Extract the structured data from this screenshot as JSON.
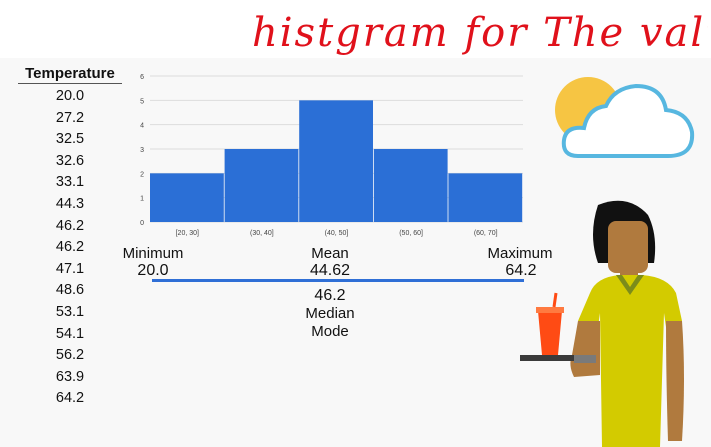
{
  "title_ink": "histgram for The values",
  "table": {
    "header": "Temperature",
    "values": [
      "20.0",
      "27.2",
      "32.5",
      "32.6",
      "33.1",
      "44.3",
      "46.2",
      "46.2",
      "47.1",
      "48.6",
      "53.1",
      "54.1",
      "56.2",
      "63.9",
      "64.2"
    ]
  },
  "chart_data": {
    "type": "bar",
    "categories": [
      "[20, 30]",
      "(30, 40]",
      "(40, 50]",
      "(50, 60]",
      "(60, 70]"
    ],
    "values": [
      2,
      3,
      5,
      3,
      2
    ],
    "ylim": [
      0,
      6
    ],
    "yticks": [
      "0",
      "1",
      "2",
      "3",
      "4",
      "5",
      "6"
    ],
    "grid": true,
    "bar_color": "#2b6fd6"
  },
  "stats": {
    "minimum_label": "Minimum",
    "minimum_value": "20.0",
    "mean_label": "Mean",
    "mean_value": "44.62",
    "maximum_label": "Maximum",
    "maximum_value": "64.2",
    "median_value": "46.2",
    "median_label": "Median",
    "mode_label": "Mode"
  },
  "colors": {
    "accent": "#2f6fd6",
    "ink": "#e0111b"
  },
  "icons": {
    "weather": "sun-behind-cloud-icon",
    "person": "person-with-drink-icon"
  }
}
